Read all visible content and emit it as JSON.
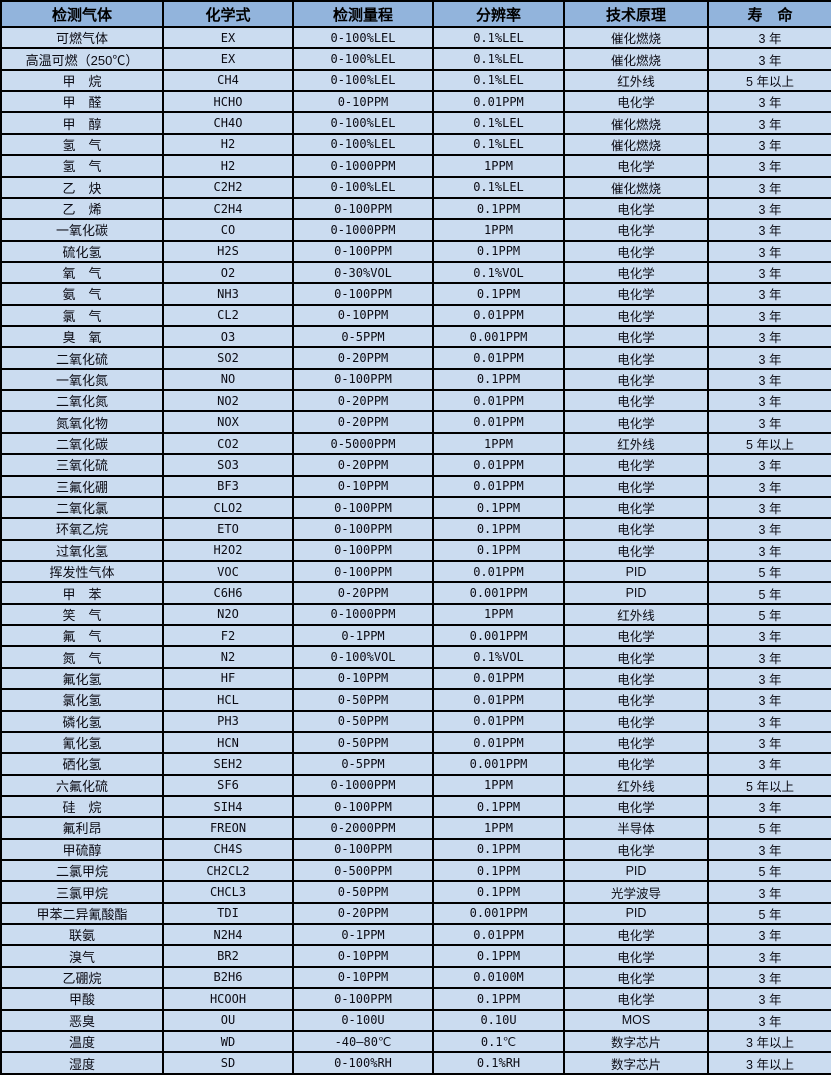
{
  "colors": {
    "header_bg": "#92b4dc",
    "row_bg": "#cbdcf0",
    "grid_line": "#000000",
    "text": "#0b0b14"
  },
  "table": {
    "columns": [
      "检测气体",
      "化学式",
      "检测量程",
      "分辨率",
      "技术原理",
      "寿　命"
    ],
    "rows": [
      [
        "可燃气体",
        "EX",
        "0-100%LEL",
        "0.1%LEL",
        "催化燃烧",
        "3 年"
      ],
      [
        "高温可燃（250℃）",
        "EX",
        "0-100%LEL",
        "0.1%LEL",
        "催化燃烧",
        "3 年"
      ],
      [
        "甲　烷",
        "CH4",
        "0-100%LEL",
        "0.1%LEL",
        "红外线",
        "5 年以上"
      ],
      [
        "甲　醛",
        "HCHO",
        "0-10PPM",
        "0.01PPM",
        "电化学",
        "3 年"
      ],
      [
        "甲　醇",
        "CH4O",
        "0-100%LEL",
        "0.1%LEL",
        "催化燃烧",
        "3 年"
      ],
      [
        "氢　气",
        "H2",
        "0-100%LEL",
        "0.1%LEL",
        "催化燃烧",
        "3 年"
      ],
      [
        "氢　气",
        "H2",
        "0-1000PPM",
        "1PPM",
        "电化学",
        "3 年"
      ],
      [
        "乙　炔",
        "C2H2",
        "0-100%LEL",
        "0.1%LEL",
        "催化燃烧",
        "3 年"
      ],
      [
        "乙　烯",
        "C2H4",
        "0-100PPM",
        "0.1PPM",
        "电化学",
        "3 年"
      ],
      [
        "一氧化碳",
        "CO",
        "0-1000PPM",
        "1PPM",
        "电化学",
        "3 年"
      ],
      [
        "硫化氢",
        "H2S",
        "0-100PPM",
        "0.1PPM",
        "电化学",
        "3 年"
      ],
      [
        "氧　气",
        "O2",
        "0-30%VOL",
        "0.1%VOL",
        "电化学",
        "3 年"
      ],
      [
        "氨　气",
        "NH3",
        "0-100PPM",
        "0.1PPM",
        "电化学",
        "3 年"
      ],
      [
        "氯　气",
        "CL2",
        "0-10PPM",
        "0.01PPM",
        "电化学",
        "3 年"
      ],
      [
        "臭　氧",
        "O3",
        "0-5PPM",
        "0.001PPM",
        "电化学",
        "3 年"
      ],
      [
        "二氧化硫",
        "SO2",
        "0-20PPM",
        "0.01PPM",
        "电化学",
        "3 年"
      ],
      [
        "一氧化氮",
        "NO",
        "0-100PPM",
        "0.1PPM",
        "电化学",
        "3 年"
      ],
      [
        "二氧化氮",
        "NO2",
        "0-20PPM",
        "0.01PPM",
        "电化学",
        "3 年"
      ],
      [
        "氮氧化物",
        "NOX",
        "0-20PPM",
        "0.01PPM",
        "电化学",
        "3 年"
      ],
      [
        "二氧化碳",
        "CO2",
        "0-5000PPM",
        "1PPM",
        "红外线",
        "5 年以上"
      ],
      [
        "三氧化硫",
        "SO3",
        "0-20PPM",
        "0.01PPM",
        "电化学",
        "3 年"
      ],
      [
        "三氟化硼",
        "BF3",
        "0-10PPM",
        "0.01PPM",
        "电化学",
        "3 年"
      ],
      [
        "二氧化氯",
        "CLO2",
        "0-100PPM",
        "0.1PPM",
        "电化学",
        "3 年"
      ],
      [
        "环氧乙烷",
        "ETO",
        "0-100PPM",
        "0.1PPM",
        "电化学",
        "3 年"
      ],
      [
        "过氧化氢",
        "H2O2",
        "0-100PPM",
        "0.1PPM",
        "电化学",
        "3 年"
      ],
      [
        "挥发性气体",
        "VOC",
        "0-100PPM",
        "0.01PPM",
        "PID",
        "5 年"
      ],
      [
        "甲　苯",
        "C6H6",
        "0-20PPM",
        "0.001PPM",
        "PID",
        "5 年"
      ],
      [
        "笑　气",
        "N2O",
        "0-1000PPM",
        "1PPM",
        "红外线",
        "5 年"
      ],
      [
        "氟　气",
        "F2",
        "0-1PPM",
        "0.001PPM",
        "电化学",
        "3 年"
      ],
      [
        "氮　气",
        "N2",
        "0-100%VOL",
        "0.1%VOL",
        "电化学",
        "3 年"
      ],
      [
        "氟化氢",
        "HF",
        "0-10PPM",
        "0.01PPM",
        "电化学",
        "3 年"
      ],
      [
        "氯化氢",
        "HCL",
        "0-50PPM",
        "0.01PPM",
        "电化学",
        "3 年"
      ],
      [
        "磷化氢",
        "PH3",
        "0-50PPM",
        "0.01PPM",
        "电化学",
        "3 年"
      ],
      [
        "氰化氢",
        "HCN",
        "0-50PPM",
        "0.01PPM",
        "电化学",
        "3 年"
      ],
      [
        "硒化氢",
        "SEH2",
        "0-5PPM",
        "0.001PPM",
        "电化学",
        "3 年"
      ],
      [
        "六氟化硫",
        "SF6",
        "0-1000PPM",
        "1PPM",
        "红外线",
        "5 年以上"
      ],
      [
        "硅　烷",
        "SIH4",
        "0-100PPM",
        "0.1PPM",
        "电化学",
        "3 年"
      ],
      [
        "氟利昂",
        "FREON",
        "0-2000PPM",
        "1PPM",
        "半导体",
        "5 年"
      ],
      [
        "甲硫醇",
        "CH4S",
        "0-100PPM",
        "0.1PPM",
        "电化学",
        "3 年"
      ],
      [
        "二氯甲烷",
        "CH2CL2",
        "0-500PPM",
        "0.1PPM",
        "PID",
        "5 年"
      ],
      [
        "三氯甲烷",
        "CHCL3",
        "0-50PPM",
        "0.1PPM",
        "光学波导",
        "3 年"
      ],
      [
        "甲苯二异氰酸酯",
        "TDI",
        "0-20PPM",
        "0.001PPM",
        "PID",
        "5 年"
      ],
      [
        "联氨",
        "N2H4",
        "0-1PPM",
        "0.01PPM",
        "电化学",
        "3 年"
      ],
      [
        "溴气",
        "BR2",
        "0-10PPM",
        "0.1PPM",
        "电化学",
        "3 年"
      ],
      [
        "乙硼烷",
        "B2H6",
        "0-10PPM",
        "0.0100M",
        "电化学",
        "3 年"
      ],
      [
        "甲酸",
        "HCOOH",
        "0-100PPM",
        "0.1PPM",
        "电化学",
        "3 年"
      ],
      [
        "恶臭",
        "OU",
        "0-100U",
        "0.10U",
        "MOS",
        "3 年"
      ],
      [
        "温度",
        "WD",
        "-40—80℃",
        "0.1℃",
        "数字芯片",
        "3 年以上"
      ],
      [
        "湿度",
        "SD",
        "0-100%RH",
        "0.1%RH",
        "数字芯片",
        "3 年以上"
      ]
    ]
  }
}
